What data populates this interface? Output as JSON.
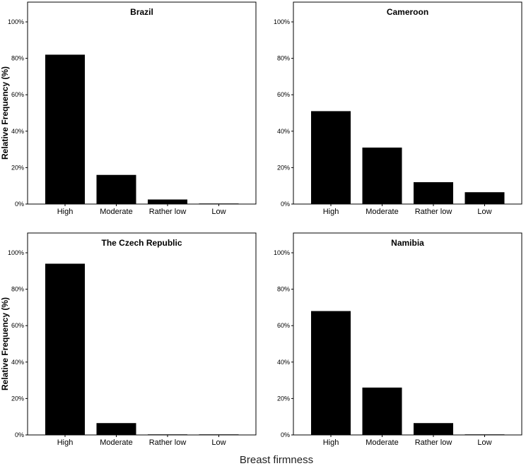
{
  "figure": {
    "xlabel": "Breast firmness",
    "ylabel": "Relative Frequency (%)"
  },
  "chart_data": [
    {
      "type": "bar",
      "title": "Brazil",
      "categories": [
        "High",
        "Moderate",
        "Rather low",
        "Low"
      ],
      "values": [
        82,
        16,
        2.5,
        0.3
      ],
      "ylim": [
        0,
        100
      ],
      "yticks": [
        "0%",
        "20%",
        "40%",
        "60%",
        "80%",
        "100%"
      ],
      "ylabel": "Relative Frequency (%)",
      "grid": false
    },
    {
      "type": "bar",
      "title": "Cameroon",
      "categories": [
        "High",
        "Moderate",
        "Rather low",
        "Low"
      ],
      "values": [
        51,
        31,
        12,
        6.5
      ],
      "ylim": [
        0,
        100
      ],
      "yticks": [
        "0%",
        "20%",
        "40%",
        "60%",
        "80%",
        "100%"
      ],
      "ylabel": "",
      "grid": false
    },
    {
      "type": "bar",
      "title": "The Czech Republic",
      "categories": [
        "High",
        "Moderate",
        "Rather low",
        "Low"
      ],
      "values": [
        94,
        6.5,
        0.3,
        0.3
      ],
      "ylim": [
        0,
        100
      ],
      "yticks": [
        "0%",
        "20%",
        "40%",
        "60%",
        "80%",
        "100%"
      ],
      "ylabel": "Relative Frequency (%)",
      "grid": false
    },
    {
      "type": "bar",
      "title": "Namibia",
      "categories": [
        "High",
        "Moderate",
        "Rather low",
        "Low"
      ],
      "values": [
        68,
        26,
        6.5,
        0.3
      ],
      "ylim": [
        0,
        100
      ],
      "yticks": [
        "0%",
        "20%",
        "40%",
        "60%",
        "80%",
        "100%"
      ],
      "ylabel": "",
      "grid": false
    }
  ],
  "colors": {
    "bar": "#000000",
    "frame": "#000000",
    "background": "#ffffff"
  }
}
